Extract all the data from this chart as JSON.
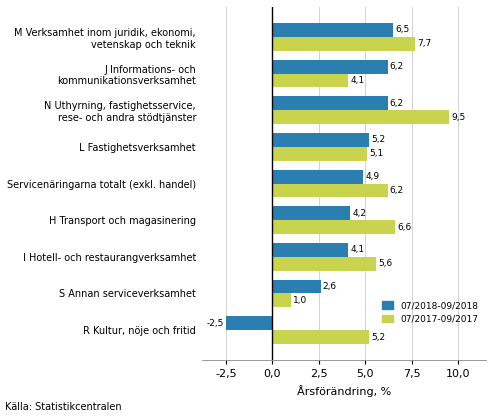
{
  "categories": [
    "M Verksamhet inom juridik, ekonomi,\nvetenskap och teknik",
    "J Informations- och\nkommunikationsverksamhet",
    "N Uthyrning, fastighetsservice,\nrese- och andra stödtjänster",
    "L Fastighetsverksamhet",
    "Servicenäringarna totalt (exkl. handel)",
    "H Transport och magasinering",
    "I Hotell- och restaurangverksamhet",
    "S Annan serviceverksamhet",
    "R Kultur, nöje och fritid"
  ],
  "values_2018": [
    6.5,
    6.2,
    6.2,
    5.2,
    4.9,
    4.2,
    4.1,
    2.6,
    -2.5
  ],
  "values_2017": [
    7.7,
    4.1,
    9.5,
    5.1,
    6.2,
    6.6,
    5.6,
    1.0,
    5.2
  ],
  "color_2018": "#2B7EB0",
  "color_2017": "#C8D44E",
  "legend_2018": "07/2018-09/2018",
  "legend_2017": "07/2017-09/2017",
  "xlabel": "Årsförändring, %",
  "xlim": [
    -3.8,
    11.5
  ],
  "xticks": [
    -2.5,
    0.0,
    2.5,
    5.0,
    7.5,
    10.0
  ],
  "xtick_labels": [
    "-2,5",
    "0,0",
    "2,5",
    "5,0",
    "7,5",
    "10,0"
  ],
  "source": "Källa: Statistikcentralen",
  "bar_height": 0.38
}
